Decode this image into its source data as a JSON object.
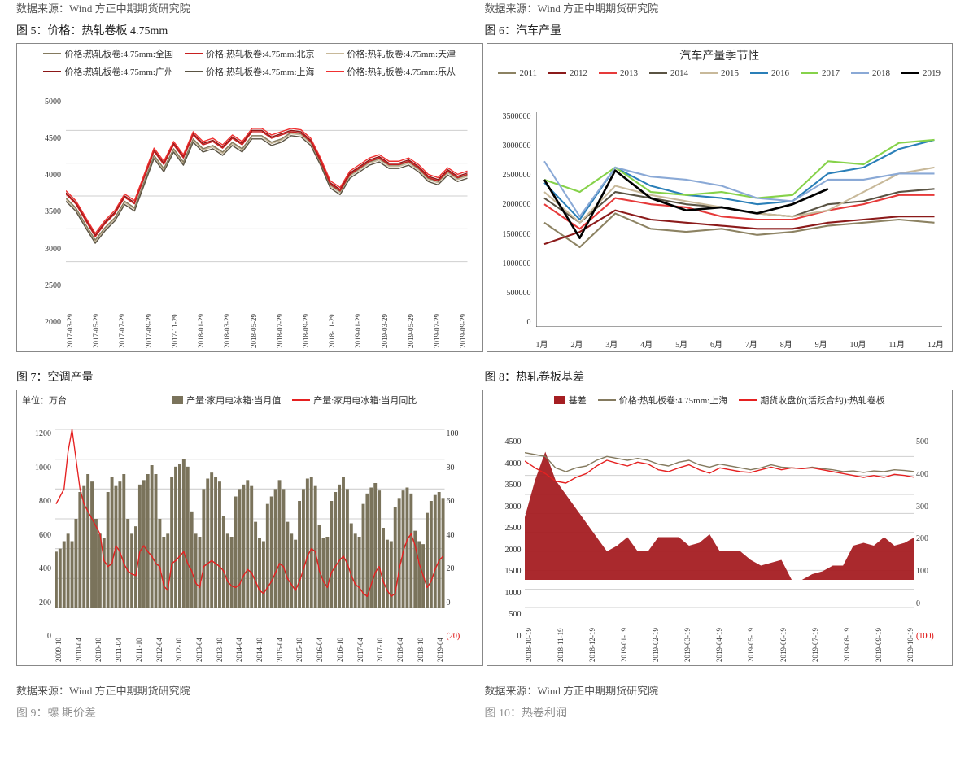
{
  "top_source_left": "数据来源：Wind  方正中期期货研究院",
  "top_source_right": "数据来源：Wind  方正中期期货研究院",
  "fig5": {
    "title": "图 5：价格：热轧卷板 4.75mm",
    "type": "line",
    "legend": [
      {
        "label": "价格:热轧板卷:4.75mm:全国",
        "color": "#847a5f"
      },
      {
        "label": "价格:热轧板卷:4.75mm:北京",
        "color": "#c82020"
      },
      {
        "label": "价格:热轧板卷:4.75mm:天津",
        "color": "#c8b99a"
      },
      {
        "label": "价格:热轧板卷:4.75mm:广州",
        "color": "#8c1717"
      },
      {
        "label": "价格:热轧板卷:4.75mm:上海",
        "color": "#5a5343"
      },
      {
        "label": "价格:热轧板卷:4.75mm:乐从",
        "color": "#f03030"
      }
    ],
    "ylim": [
      2000,
      5000
    ],
    "ytick_step": 500,
    "x_labels": [
      "2017-03-29",
      "2017-05-29",
      "2017-07-29",
      "2017-09-29",
      "2017-11-29",
      "2018-01-29",
      "2018-03-29",
      "2018-05-29",
      "2018-07-29",
      "2018-09-29",
      "2018-11-29",
      "2019-01-29",
      "2019-03-29",
      "2019-05-29",
      "2019-07-29",
      "2019-09-29"
    ],
    "series": {
      "national": [
        3450,
        3300,
        3050,
        2810,
        3000,
        3150,
        3400,
        3300,
        3700,
        4100,
        3900,
        4200,
        4000,
        4350,
        4200,
        4250,
        4150,
        4300,
        4200,
        4400,
        4400,
        4300,
        4350,
        4450,
        4430,
        4300,
        4000,
        3650,
        3550,
        3800,
        3900,
        4000,
        4050,
        3950,
        3950,
        4000,
        3900,
        3750,
        3700,
        3850,
        3750,
        3800
      ],
      "red": [
        3550,
        3400,
        3150,
        2900,
        3100,
        3250,
        3500,
        3400,
        3800,
        4200,
        4000,
        4300,
        4100,
        4450,
        4300,
        4350,
        4250,
        4400,
        4300,
        4500,
        4500,
        4400,
        4450,
        4500,
        4480,
        4350,
        4050,
        3700,
        3600,
        3850,
        3950,
        4050,
        4100,
        4000,
        4000,
        4050,
        3950,
        3800,
        3750,
        3900,
        3800,
        3850
      ]
    },
    "line_width": 1.4,
    "background_color": "#ffffff",
    "grid_color": "#d7d7d7",
    "font_family": "serif",
    "label_fontsize": 10
  },
  "fig6": {
    "title": "图 6：汽车产量",
    "inner_title": "汽车产量季节性",
    "type": "line",
    "legend": [
      {
        "label": "2011",
        "color": "#8c8262"
      },
      {
        "label": "2012",
        "color": "#8b1a1a"
      },
      {
        "label": "2013",
        "color": "#e63a3a"
      },
      {
        "label": "2014",
        "color": "#5a5343"
      },
      {
        "label": "2015",
        "color": "#c8b99a"
      },
      {
        "label": "2016",
        "color": "#2a7fb8"
      },
      {
        "label": "2017",
        "color": "#86d24a"
      },
      {
        "label": "2018",
        "color": "#8aa9d6"
      },
      {
        "label": "2019",
        "color": "#000000"
      }
    ],
    "ylim": [
      0,
      3500000
    ],
    "ytick_step": 500000,
    "x_labels": [
      "1月",
      "2月",
      "3月",
      "4月",
      "5月",
      "6月",
      "7月",
      "8月",
      "9月",
      "10月",
      "11月",
      "12月"
    ],
    "series": {
      "y2011": [
        1700000,
        1300000,
        1850000,
        1600000,
        1550000,
        1600000,
        1500000,
        1550000,
        1650000,
        1700000,
        1750000,
        1700000
      ],
      "y2012": [
        1350000,
        1550000,
        1900000,
        1750000,
        1700000,
        1650000,
        1600000,
        1600000,
        1700000,
        1750000,
        1800000,
        1800000
      ],
      "y2013": [
        2000000,
        1600000,
        2100000,
        2000000,
        1950000,
        1800000,
        1750000,
        1750000,
        1900000,
        2000000,
        2150000,
        2150000
      ],
      "y2014": [
        2100000,
        1700000,
        2200000,
        2100000,
        2000000,
        1950000,
        1850000,
        1800000,
        2000000,
        2050000,
        2200000,
        2250000
      ],
      "y2015": [
        2200000,
        1700000,
        2300000,
        2150000,
        2050000,
        1950000,
        1850000,
        1800000,
        1900000,
        2200000,
        2500000,
        2600000
      ],
      "y2016": [
        2350000,
        1750000,
        2600000,
        2300000,
        2150000,
        2100000,
        2000000,
        2050000,
        2500000,
        2600000,
        2900000,
        3050000
      ],
      "y2017": [
        2400000,
        2200000,
        2600000,
        2200000,
        2150000,
        2200000,
        2100000,
        2150000,
        2700000,
        2650000,
        3000000,
        3050000
      ],
      "y2018": [
        2700000,
        1800000,
        2600000,
        2450000,
        2400000,
        2300000,
        2100000,
        2050000,
        2400000,
        2400000,
        2500000,
        2500000
      ],
      "y2019": [
        2400000,
        1450000,
        2550000,
        2100000,
        1900000,
        1950000,
        1850000,
        2000000,
        2250000
      ]
    },
    "line_width": 2,
    "background_color": "#ffffff",
    "grid_color": "#e0e0e0",
    "label_fontsize": 10
  },
  "fig7": {
    "title": "图 7：空调产量",
    "unit_label": "单位：万台",
    "type": "bar_line",
    "legend": [
      {
        "label": "产量:家用电冰箱:当月值",
        "color": "#7a735b",
        "kind": "bar"
      },
      {
        "label": "产量:家用电冰箱:当月同比",
        "color": "#e52020",
        "kind": "line"
      }
    ],
    "ylim_left": [
      0,
      1200
    ],
    "ytick_left": 200,
    "ylim_right": [
      -20,
      100
    ],
    "ytick_right": 20,
    "x_labels": [
      "2009-10",
      "2010-04",
      "2010-10",
      "2011-04",
      "2011-10",
      "2012-04",
      "2012-10",
      "2013-04",
      "2013-10",
      "2014-04",
      "2014-10",
      "2015-04",
      "2015-10",
      "2016-04",
      "2016-10",
      "2017-04",
      "2017-10",
      "2018-04",
      "2018-10",
      "2019-04"
    ],
    "bars": [
      380,
      400,
      450,
      500,
      450,
      600,
      780,
      820,
      900,
      850,
      600,
      500,
      470,
      780,
      880,
      820,
      850,
      900,
      600,
      500,
      550,
      830,
      860,
      900,
      960,
      900,
      600,
      480,
      500,
      880,
      950,
      970,
      1000,
      950,
      650,
      500,
      480,
      800,
      870,
      910,
      880,
      850,
      620,
      500,
      480,
      750,
      800,
      830,
      860,
      820,
      580,
      470,
      450,
      700,
      750,
      800,
      860,
      800,
      580,
      500,
      460,
      720,
      800,
      870,
      880,
      820,
      560,
      470,
      480,
      720,
      780,
      830,
      880,
      800,
      570,
      500,
      480,
      700,
      770,
      810,
      840,
      790,
      540,
      460,
      450,
      680,
      740,
      790,
      810,
      770,
      520,
      450,
      430,
      640,
      720,
      760,
      780,
      740
    ],
    "line": [
      50,
      55,
      60,
      85,
      100,
      80,
      60,
      50,
      45,
      40,
      35,
      30,
      12,
      8,
      10,
      22,
      18,
      10,
      5,
      3,
      2,
      18,
      22,
      18,
      15,
      10,
      8,
      -5,
      -8,
      10,
      12,
      15,
      18,
      10,
      5,
      -3,
      -6,
      8,
      10,
      12,
      10,
      8,
      5,
      -2,
      -5,
      -6,
      -4,
      2,
      6,
      4,
      -2,
      -8,
      -10,
      -6,
      -2,
      4,
      10,
      8,
      0,
      -4,
      -8,
      -2,
      6,
      15,
      20,
      18,
      5,
      -2,
      -6,
      4,
      8,
      12,
      15,
      10,
      2,
      -4,
      -6,
      -10,
      -12,
      -4,
      4,
      8,
      -2,
      -8,
      -12,
      -10,
      6,
      18,
      26,
      30,
      22,
      10,
      2,
      -6,
      -2,
      6,
      12,
      15
    ],
    "bar_color": "#7a735b",
    "line_color": "#e52020",
    "background_color": "#ffffff",
    "grid_color": "#d9d9d9",
    "label_fontsize": 10
  },
  "fig8": {
    "title": "图 8：热轧卷板基差",
    "type": "area_line",
    "legend": [
      {
        "label": "基差",
        "color": "#a51e22",
        "kind": "area"
      },
      {
        "label": "价格:热轧板卷:4.75mm:上海",
        "color": "#847a5f",
        "kind": "line"
      },
      {
        "label": "期货收盘价(活跃合约):热轧卷板",
        "color": "#e52020",
        "kind": "line"
      }
    ],
    "ylim_left": [
      0,
      4500
    ],
    "ytick_left": 500,
    "ylim_right": [
      -100,
      500
    ],
    "ytick_right": 100,
    "x_labels": [
      "2018-10-19",
      "2018-11-19",
      "2018-12-19",
      "2019-01-19",
      "2019-02-19",
      "2019-03-19",
      "2019-04-19",
      "2019-05-19",
      "2019-06-19",
      "2019-07-19",
      "2019-08-19",
      "2019-09-19",
      "2019-10-19"
    ],
    "price": [
      4100,
      4050,
      4000,
      3700,
      3600,
      3700,
      3750,
      3900,
      4000,
      3950,
      3900,
      3950,
      3900,
      3800,
      3750,
      3850,
      3900,
      3780,
      3720,
      3800,
      3750,
      3700,
      3650,
      3700,
      3780,
      3720,
      3700,
      3680,
      3720,
      3680,
      3650,
      3600,
      3620,
      3580,
      3620,
      3600,
      3650,
      3630,
      3600
    ],
    "futures": [
      3880,
      3700,
      3550,
      3350,
      3300,
      3450,
      3550,
      3750,
      3900,
      3820,
      3750,
      3850,
      3800,
      3650,
      3600,
      3700,
      3780,
      3650,
      3560,
      3700,
      3650,
      3600,
      3580,
      3650,
      3720,
      3650,
      3700,
      3680,
      3700,
      3650,
      3600,
      3550,
      3500,
      3450,
      3500,
      3450,
      3530,
      3500,
      3450
    ],
    "basis": [
      220,
      350,
      450,
      350,
      300,
      250,
      200,
      150,
      100,
      120,
      150,
      100,
      100,
      150,
      150,
      150,
      120,
      130,
      160,
      100,
      100,
      100,
      70,
      50,
      60,
      70,
      0,
      0,
      20,
      30,
      50,
      50,
      120,
      130,
      120,
      150,
      120,
      130,
      150
    ],
    "area_color": "#a51e22",
    "price_color": "#847a5f",
    "futures_color": "#e52020",
    "background_color": "#ffffff",
    "grid_color": "#d9d9d9",
    "label_fontsize": 10
  },
  "bottom_source_left": "数据来源：Wind  方正中期期货研究院",
  "bottom_source_right": "数据来源：Wind  方正中期期货研究院",
  "cutoff_left": "图 9：螺  期价差",
  "cutoff_right": "图 10：热卷利润"
}
